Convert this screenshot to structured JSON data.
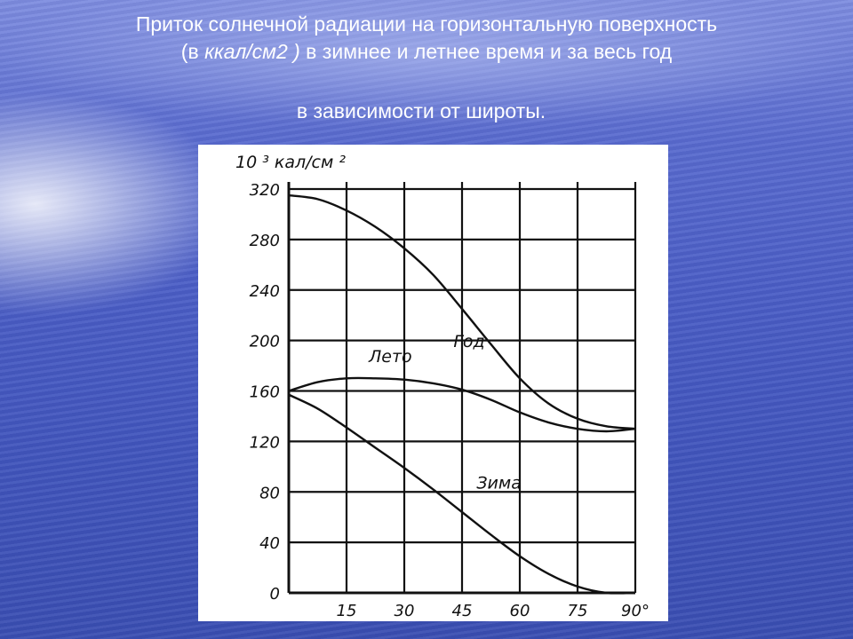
{
  "title_line1": "Приток солнечной радиации на горизонтальную поверхность",
  "title_line2_pre": "(в ",
  "title_line2_unit": "ккал/см2 )",
  "title_line2_post": " в зимнее и летнее время и за весь год",
  "title_line3": "в зависимости от широты.",
  "chart_data": {
    "type": "line",
    "ylabel": "10 ³ кал/см ²",
    "x": [
      0,
      15,
      30,
      45,
      60,
      75,
      90
    ],
    "x_ticks": [
      15,
      30,
      45,
      60,
      75,
      90
    ],
    "x_tick_labels": [
      "15",
      "30",
      "45",
      "60",
      "75",
      "90°"
    ],
    "y_ticks": [
      0,
      40,
      80,
      120,
      160,
      200,
      240,
      280,
      320
    ],
    "y_tick_labels": [
      "0",
      "40",
      "80",
      "120",
      "160",
      "200",
      "240",
      "280",
      "320"
    ],
    "xlim": [
      0,
      90
    ],
    "ylim": [
      0,
      320
    ],
    "grid": true,
    "series": [
      {
        "name": "Год",
        "x": [
          0,
          7.5,
          15,
          22.5,
          30,
          37.5,
          45,
          52.5,
          60,
          67.5,
          75,
          82.5,
          90
        ],
        "values": [
          315,
          312,
          303,
          290,
          273,
          252,
          225,
          197,
          170,
          150,
          138,
          132,
          130
        ]
      },
      {
        "name": "Лето",
        "x": [
          0,
          7.5,
          15,
          22.5,
          30,
          37.5,
          45,
          52.5,
          60,
          67.5,
          75,
          82.5,
          90
        ],
        "values": [
          160,
          167,
          170,
          170,
          169,
          166,
          161,
          153,
          143,
          135,
          130,
          128,
          130
        ]
      },
      {
        "name": "Зима",
        "x": [
          0,
          7.5,
          15,
          22.5,
          30,
          37.5,
          45,
          52.5,
          60,
          67.5,
          75,
          82.5,
          90
        ],
        "values": [
          157,
          146,
          131,
          115,
          99,
          82,
          64,
          46,
          29,
          15,
          5,
          0,
          0
        ]
      }
    ]
  }
}
